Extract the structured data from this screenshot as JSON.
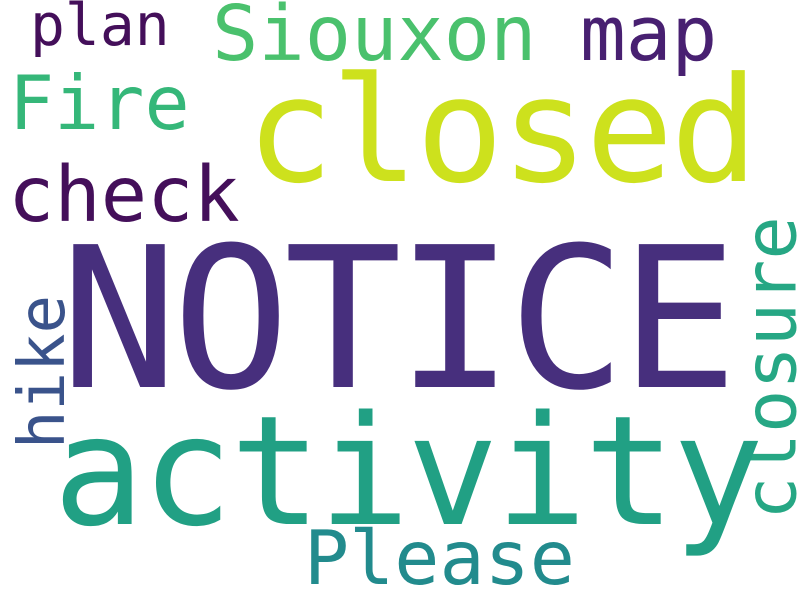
{
  "words": {
    "notice": {
      "text": "NOTICE",
      "color": "#472f7d"
    },
    "closed": {
      "text": "closed",
      "color": "#cde11d"
    },
    "activity": {
      "text": "activity",
      "color": "#21a084"
    },
    "siouxon": {
      "text": "Siouxon",
      "color": "#4ac16d"
    },
    "fire": {
      "text": "Fire",
      "color": "#35b779"
    },
    "check": {
      "text": "check",
      "color": "#440f5a"
    },
    "plan": {
      "text": "plan",
      "color": "#440f5a"
    },
    "map": {
      "text": "map",
      "color": "#482071"
    },
    "please": {
      "text": "Please",
      "color": "#228b8d"
    },
    "closure": {
      "text": "closure",
      "color": "#26a784"
    },
    "hike": {
      "text": "hike",
      "color": "#3a538b"
    }
  },
  "orientation": {
    "closure": "vertical",
    "hike": "vertical"
  }
}
